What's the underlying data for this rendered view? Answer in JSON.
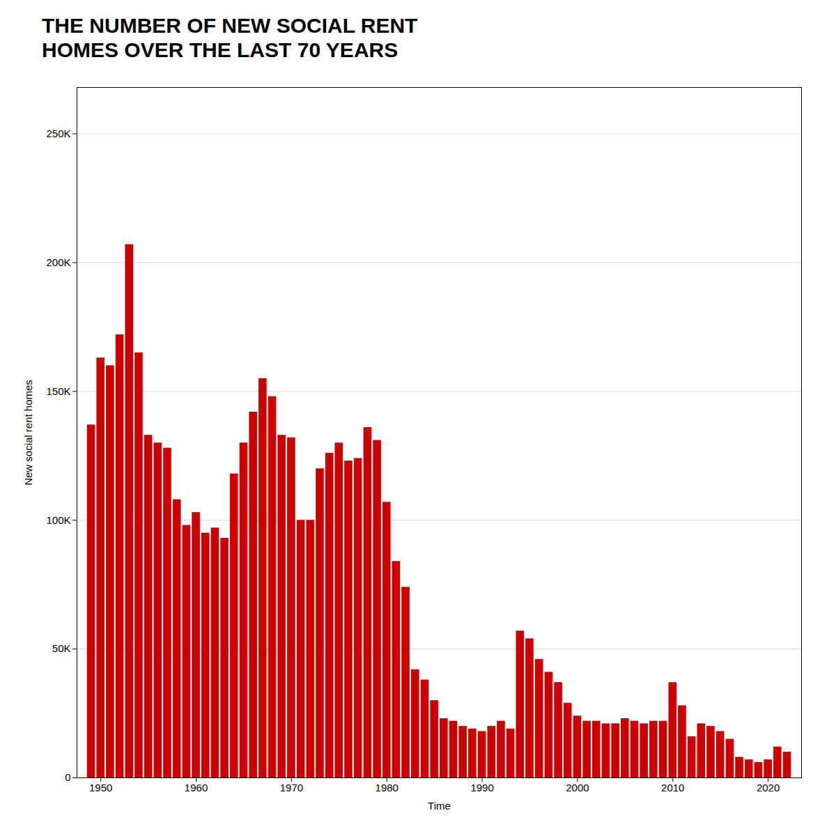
{
  "chart_data": {
    "type": "bar",
    "title": "THE NUMBER OF NEW SOCIAL RENT\nHOMES OVER THE LAST 70 YEARS",
    "x_label": "Time",
    "y_label": "New social rent homes",
    "x": [
      1949,
      1950,
      1951,
      1952,
      1953,
      1954,
      1955,
      1956,
      1957,
      1958,
      1959,
      1960,
      1961,
      1962,
      1963,
      1964,
      1965,
      1966,
      1967,
      1968,
      1969,
      1970,
      1971,
      1972,
      1973,
      1974,
      1975,
      1976,
      1977,
      1978,
      1979,
      1980,
      1981,
      1982,
      1983,
      1984,
      1985,
      1986,
      1987,
      1988,
      1989,
      1990,
      1991,
      1992,
      1993,
      1994,
      1995,
      1996,
      1997,
      1998,
      1999,
      2000,
      2001,
      2002,
      2003,
      2004,
      2005,
      2006,
      2007,
      2008,
      2009,
      2010,
      2011,
      2012,
      2013,
      2014,
      2015,
      2016,
      2017,
      2018,
      2019,
      2020,
      2021,
      2022
    ],
    "values": [
      137000,
      163000,
      160000,
      172000,
      207000,
      165000,
      133000,
      130000,
      128000,
      108000,
      98000,
      103000,
      95000,
      97000,
      93000,
      118000,
      130000,
      142000,
      155000,
      148000,
      133000,
      132000,
      100000,
      100000,
      120000,
      126000,
      130000,
      123000,
      124000,
      136000,
      131000,
      107000,
      84000,
      74000,
      42000,
      38000,
      30000,
      23000,
      22000,
      20000,
      19000,
      18000,
      20000,
      22000,
      19000,
      57000,
      54000,
      46000,
      41000,
      37000,
      29000,
      24000,
      22000,
      22000,
      21000,
      21000,
      23000,
      22000,
      21000,
      22000,
      22000,
      37000,
      28000,
      16000,
      21000,
      20000,
      18000,
      15000,
      8000,
      7000,
      6000,
      7000,
      12000,
      10000
    ],
    "color": "#cc0000",
    "xlim": [
      1947.5,
      2023.5
    ],
    "xticks": [
      1950,
      1960,
      1970,
      1980,
      1990,
      2000,
      2010,
      2020
    ],
    "ylim": [
      0,
      268000
    ],
    "yticks": [
      0,
      {
        "value": 50000,
        "label": "50K"
      },
      {
        "value": 100000,
        "label": "100K"
      },
      {
        "value": 150000,
        "label": "150K"
      },
      {
        "value": 200000,
        "label": "200K"
      },
      {
        "value": 250000,
        "label": "250K"
      }
    ],
    "grid": true
  }
}
